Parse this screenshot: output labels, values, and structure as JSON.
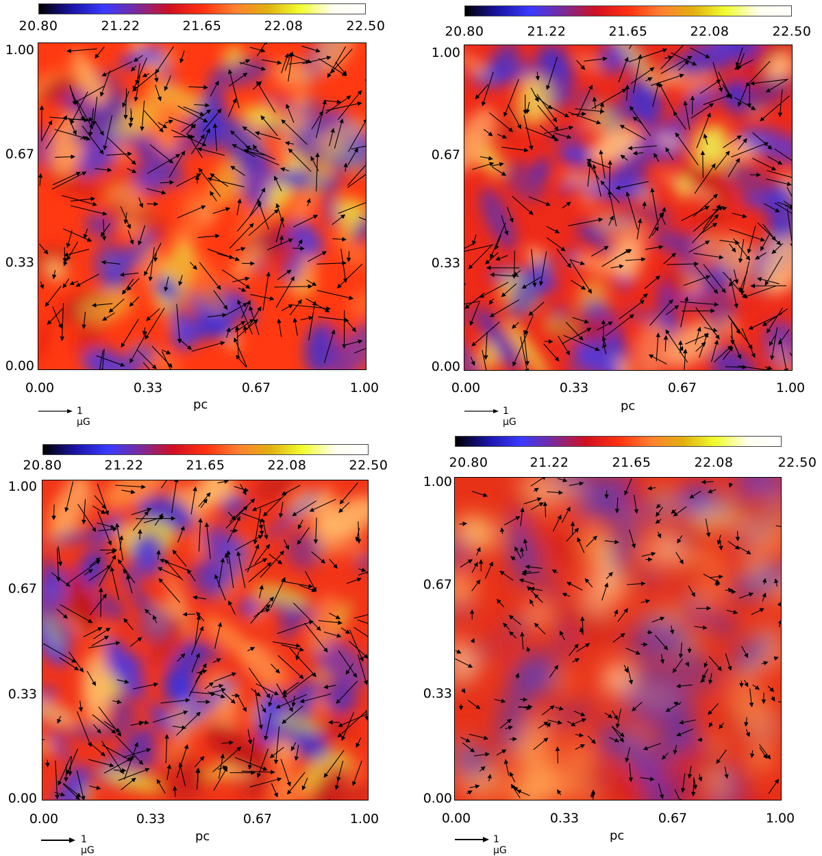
{
  "colorbar": {
    "ticks": [
      "20.80",
      "21.22",
      "21.65",
      "22.08",
      "22.50"
    ],
    "colors": [
      "#000000",
      "#1a14a6",
      "#3a3aff",
      "#7a2a9a",
      "#d01020",
      "#ff3010",
      "#ff8030",
      "#e0b010",
      "#f0ff30",
      "#fffff0",
      "#ffffff"
    ]
  },
  "panels": [
    {
      "id": "top-left",
      "axis_ticks": [
        "0.00",
        "0.33",
        "0.67",
        "1.00"
      ],
      "x_unit": "pc",
      "scale_label": "1 μG",
      "base_color": "#ff3a12"
    },
    {
      "id": "top-right",
      "axis_ticks": [
        "0.00",
        "0.33",
        "0.67",
        "1.00"
      ],
      "x_unit": "pc",
      "scale_label": "1 μG",
      "base_color": "#ee2a18"
    },
    {
      "id": "bottom-left",
      "axis_ticks": [
        "0.00",
        "0.33",
        "0.67",
        "1.00"
      ],
      "x_unit": "pc",
      "scale_label": "1 μG",
      "base_color": "#f23518"
    },
    {
      "id": "bottom-right",
      "axis_ticks": [
        "0.00",
        "0.33",
        "0.67",
        "1.00"
      ],
      "x_unit": "pc",
      "scale_label": "1 μG",
      "base_color": "#e83218"
    }
  ]
}
